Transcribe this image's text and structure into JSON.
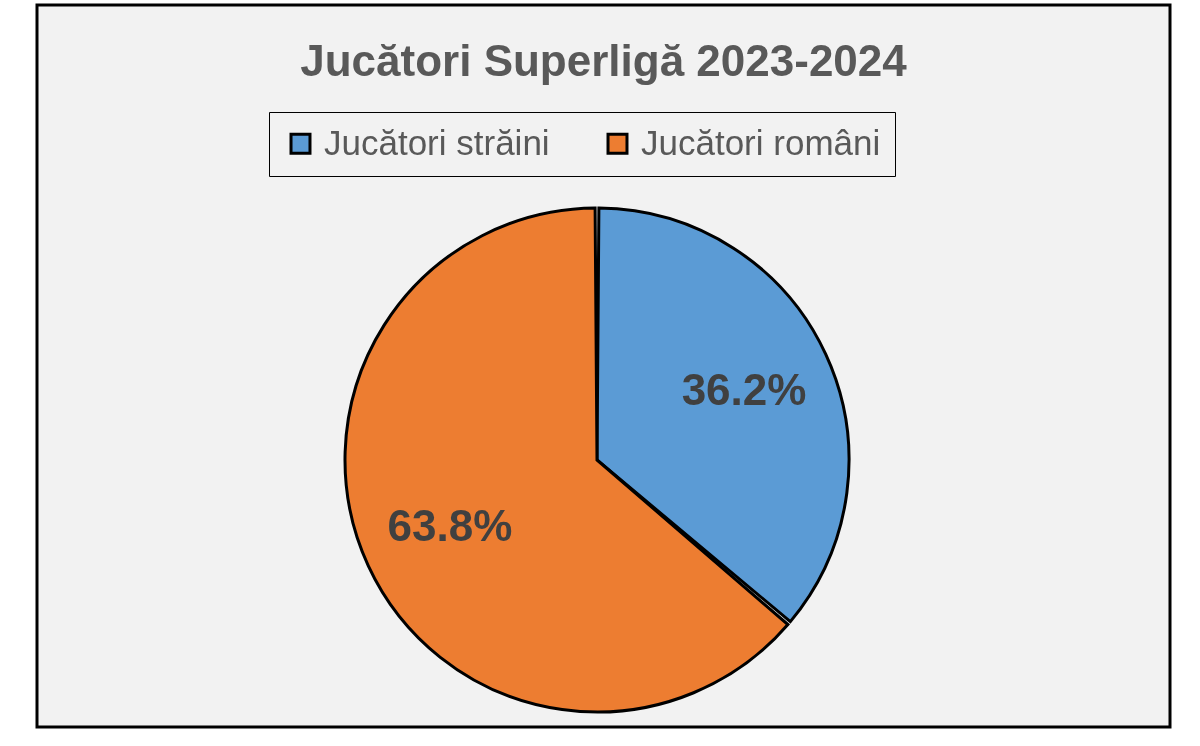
{
  "chart_data": {
    "type": "pie",
    "title": "Jucători Superligă 2023-2024",
    "categories": [
      "Jucători străini",
      "Jucători români"
    ],
    "values": [
      36.2,
      63.8
    ],
    "colors": [
      "#5b9bd5",
      "#ed7d31"
    ],
    "value_labels": [
      "36.2%",
      "63.8%"
    ],
    "legend": "top"
  }
}
